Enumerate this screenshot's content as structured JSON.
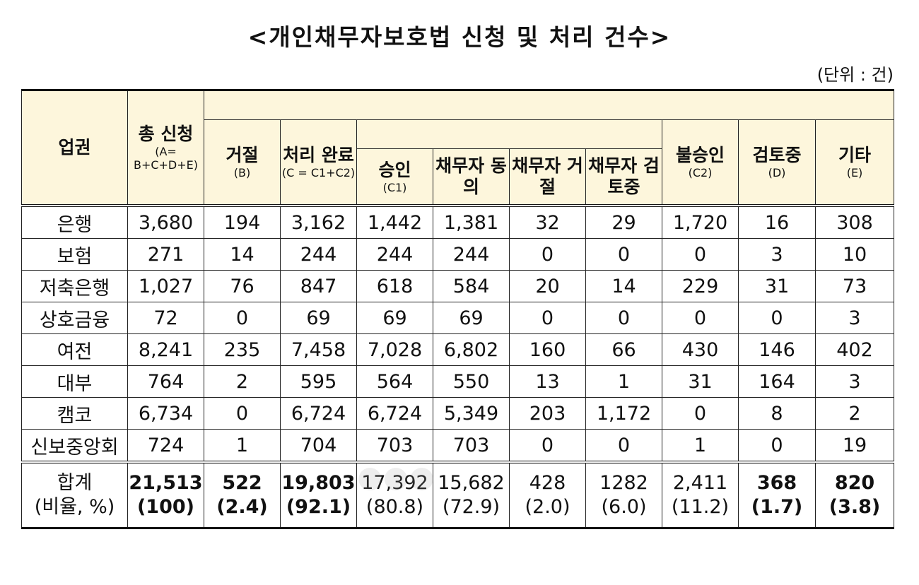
{
  "title": "<개인채무자보호법 신청 및 처리 건수>",
  "unit": "(단위 : 건)",
  "header": {
    "industry": "업권",
    "total": "총 신청",
    "total_sub": "(A= B+C+D+E)",
    "reject": "거절",
    "reject_sub": "(B)",
    "done": "처리 완료",
    "done_sub": "(C = C1+C2)",
    "approve": "승인",
    "approve_sub": "(C1)",
    "debtor_agree": "채무자 동의",
    "debtor_reject": "채무자 거절",
    "debtor_review": "채무자 검토중",
    "disapprove": "불승인",
    "disapprove_sub": "(C2)",
    "review": "검토중",
    "review_sub": "(D)",
    "etc": "기타",
    "etc_sub": "(E)"
  },
  "rows": [
    {
      "cat": "은행",
      "v": [
        "3,680",
        "194",
        "3,162",
        "1,442",
        "1,381",
        "32",
        "29",
        "1,720",
        "16",
        "308"
      ]
    },
    {
      "cat": "보험",
      "v": [
        "271",
        "14",
        "244",
        "244",
        "244",
        "0",
        "0",
        "0",
        "3",
        "10"
      ]
    },
    {
      "cat": "저축은행",
      "v": [
        "1,027",
        "76",
        "847",
        "618",
        "584",
        "20",
        "14",
        "229",
        "31",
        "73"
      ]
    },
    {
      "cat": "상호금융",
      "v": [
        "72",
        "0",
        "69",
        "69",
        "69",
        "0",
        "0",
        "0",
        "0",
        "3"
      ]
    },
    {
      "cat": "여전",
      "v": [
        "8,241",
        "235",
        "7,458",
        "7,028",
        "6,802",
        "160",
        "66",
        "430",
        "146",
        "402"
      ]
    },
    {
      "cat": "대부",
      "v": [
        "764",
        "2",
        "595",
        "564",
        "550",
        "13",
        "1",
        "31",
        "164",
        "3"
      ]
    },
    {
      "cat": "캠코",
      "v": [
        "6,734",
        "0",
        "6,724",
        "6,724",
        "5,349",
        "203",
        "1,172",
        "0",
        "8",
        "2"
      ]
    },
    {
      "cat": "신보중앙회",
      "v": [
        "724",
        "1",
        "704",
        "703",
        "703",
        "0",
        "0",
        "1",
        "0",
        "19"
      ]
    }
  ],
  "total": {
    "cat1": "합계",
    "cat2": "(비율, %)",
    "v": [
      [
        "21,513",
        "(100)"
      ],
      [
        "522",
        "(2.4)"
      ],
      [
        "19,803",
        "(92.1)"
      ],
      [
        "17,392",
        "(80.8)"
      ],
      [
        "15,682",
        "(72.9)"
      ],
      [
        "428",
        "(2.0)"
      ],
      [
        "1282",
        "(6.0)"
      ],
      [
        "2,411",
        "(11.2)"
      ],
      [
        "368",
        "(1.7)"
      ],
      [
        "820",
        "(3.8)"
      ]
    ]
  }
}
